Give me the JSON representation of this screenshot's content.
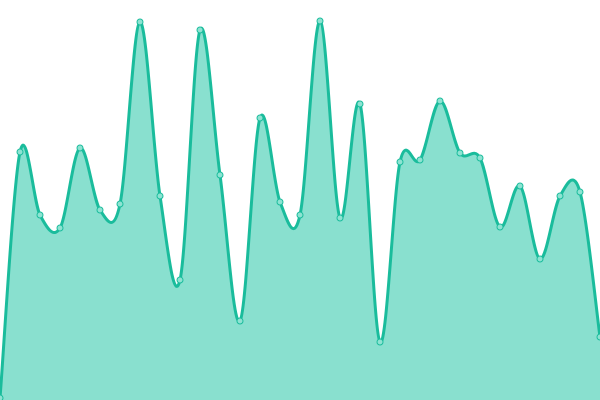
{
  "chart_data": {
    "type": "area",
    "x": [
      0,
      1,
      2,
      3,
      4,
      5,
      6,
      7,
      8,
      9,
      10,
      11,
      12,
      13,
      14,
      15,
      16,
      17,
      18,
      19,
      20,
      21,
      22,
      23,
      24,
      25,
      26,
      27,
      28,
      29,
      30
    ],
    "series": [
      {
        "values": [
          2,
          248,
          185,
          172,
          252,
          190,
          196,
          378,
          204,
          120,
          370,
          225,
          79,
          282,
          198,
          185,
          379,
          182,
          296,
          58,
          238,
          240,
          299,
          247,
          242,
          173,
          214,
          141,
          204,
          208,
          63
        ]
      }
    ],
    "ylim": [
      0,
      400
    ],
    "xlim": [
      0,
      30
    ],
    "smooth": true,
    "grid": false,
    "axes_visible": false,
    "legend": "none",
    "colors": {
      "line": "#1abc9c",
      "fill": "#89e0cf",
      "marker_fill": "#8ee3d2"
    }
  }
}
